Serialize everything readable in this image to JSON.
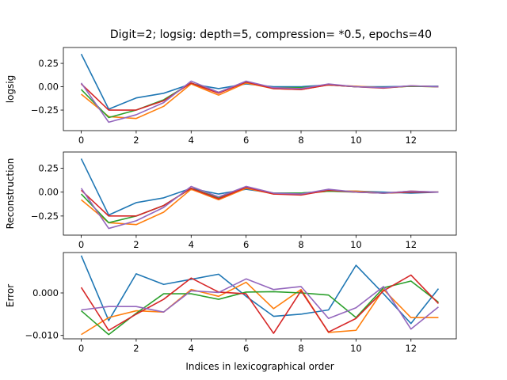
{
  "chart_data": {
    "type": "line",
    "title": "Digit=2; logsig: depth=5, compression= *0.5, epochs=40",
    "xlabel": "Indices in lexicographical order",
    "x": [
      0,
      1,
      2,
      3,
      4,
      5,
      6,
      7,
      8,
      9,
      10,
      11,
      12,
      13
    ],
    "xlim": [
      -0.65,
      13.65
    ],
    "xticks": [
      0,
      2,
      4,
      6,
      8,
      10,
      12
    ],
    "subplots": [
      {
        "ylabel": "logsig",
        "ylim": [
          -0.47,
          0.42
        ],
        "yticks": [
          {
            "value": 0.25,
            "label": "0.25"
          },
          {
            "value": 0.0,
            "label": "0.00"
          },
          {
            "value": -0.25,
            "label": "−0.25"
          }
        ],
        "series": [
          {
            "color": "#1f77b4",
            "values": [
              0.35,
              -0.24,
              -0.12,
              -0.07,
              0.03,
              -0.02,
              0.03,
              0.0,
              0.0,
              0.02,
              0.0,
              0.0,
              0.005,
              0.005
            ]
          },
          {
            "color": "#ff7f0e",
            "values": [
              -0.08,
              -0.32,
              -0.34,
              -0.21,
              0.03,
              -0.09,
              0.04,
              -0.02,
              -0.03,
              0.02,
              0.005,
              -0.01,
              0.005,
              0.0
            ]
          },
          {
            "color": "#2ca02c",
            "values": [
              -0.03,
              -0.33,
              -0.25,
              -0.14,
              0.04,
              -0.06,
              0.05,
              -0.01,
              -0.01,
              0.02,
              0.0,
              -0.01,
              0.005,
              0.0
            ]
          },
          {
            "color": "#d62728",
            "values": [
              0.03,
              -0.25,
              -0.25,
              -0.15,
              0.04,
              -0.07,
              0.05,
              -0.02,
              -0.03,
              0.02,
              0.0,
              -0.015,
              0.01,
              0.0
            ]
          },
          {
            "color": "#9467bd",
            "values": [
              0.04,
              -0.38,
              -0.3,
              -0.17,
              0.06,
              -0.06,
              0.06,
              -0.01,
              -0.02,
              0.03,
              0.0,
              -0.01,
              0.01,
              0.0
            ]
          }
        ]
      },
      {
        "ylabel": "Reconstruction",
        "ylim": [
          -0.45,
          0.42
        ],
        "yticks": [
          {
            "value": 0.25,
            "label": "0.25"
          },
          {
            "value": 0.0,
            "label": "0.00"
          },
          {
            "value": -0.25,
            "label": "−0.25"
          }
        ],
        "series": [
          {
            "color": "#1f77b4",
            "values": [
              0.35,
              -0.24,
              -0.11,
              -0.06,
              0.04,
              -0.02,
              0.03,
              -0.01,
              -0.01,
              0.01,
              0.01,
              0.0,
              -0.01,
              0.0
            ]
          },
          {
            "color": "#ff7f0e",
            "values": [
              -0.08,
              -0.32,
              -0.34,
              -0.21,
              0.03,
              -0.08,
              0.04,
              -0.02,
              -0.02,
              0.01,
              0.01,
              -0.01,
              0.01,
              0.0
            ]
          },
          {
            "color": "#2ca02c",
            "values": [
              -0.02,
              -0.32,
              -0.25,
              -0.14,
              0.04,
              -0.06,
              0.05,
              -0.01,
              -0.01,
              0.01,
              0.0,
              -0.01,
              0.0,
              0.0
            ]
          },
          {
            "color": "#d62728",
            "values": [
              0.02,
              -0.25,
              -0.25,
              -0.14,
              0.04,
              -0.07,
              0.05,
              -0.02,
              -0.03,
              0.02,
              0.0,
              -0.01,
              0.0,
              0.0
            ]
          },
          {
            "color": "#9467bd",
            "values": [
              0.04,
              -0.38,
              -0.3,
              -0.16,
              0.06,
              -0.05,
              0.06,
              -0.01,
              -0.02,
              0.03,
              0.0,
              -0.01,
              0.01,
              0.0
            ]
          }
        ]
      },
      {
        "ylabel": "Error",
        "ylim": [
          -0.0108,
          0.0095
        ],
        "yticks": [
          {
            "value": 0.0,
            "label": "0.000"
          },
          {
            "value": -0.01,
            "label": "−0.010"
          }
        ],
        "series": [
          {
            "color": "#1f77b4",
            "values": [
              0.0088,
              -0.0065,
              0.0045,
              0.002,
              0.0032,
              0.0044,
              -0.0008,
              -0.0055,
              -0.005,
              -0.004,
              0.0065,
              -0.0002,
              -0.0072,
              0.001
            ]
          },
          {
            "color": "#ff7f0e",
            "values": [
              -0.0098,
              -0.0058,
              -0.0042,
              -0.0045,
              0.0008,
              -0.0008,
              0.0025,
              -0.0037,
              0.0008,
              -0.0093,
              -0.0088,
              0.0008,
              -0.0058,
              -0.0058
            ]
          },
          {
            "color": "#2ca02c",
            "values": [
              -0.0042,
              -0.0098,
              -0.0048,
              -0.0002,
              -0.0002,
              -0.0015,
              0.0002,
              0.0003,
              0.0,
              -0.0005,
              -0.0058,
              0.0012,
              0.0028,
              -0.0022
            ]
          },
          {
            "color": "#d62728",
            "values": [
              0.0013,
              -0.0088,
              -0.005,
              -0.0015,
              0.0035,
              0.0002,
              -0.0002,
              -0.0095,
              0.0005,
              -0.0092,
              -0.006,
              0.0005,
              0.0042,
              -0.0025
            ]
          },
          {
            "color": "#9467bd",
            "values": [
              -0.004,
              -0.0032,
              -0.0032,
              -0.0045,
              0.0005,
              0.0001,
              0.0033,
              0.0008,
              0.0015,
              -0.006,
              -0.0035,
              0.0015,
              -0.0085,
              -0.0033
            ]
          }
        ]
      }
    ]
  }
}
